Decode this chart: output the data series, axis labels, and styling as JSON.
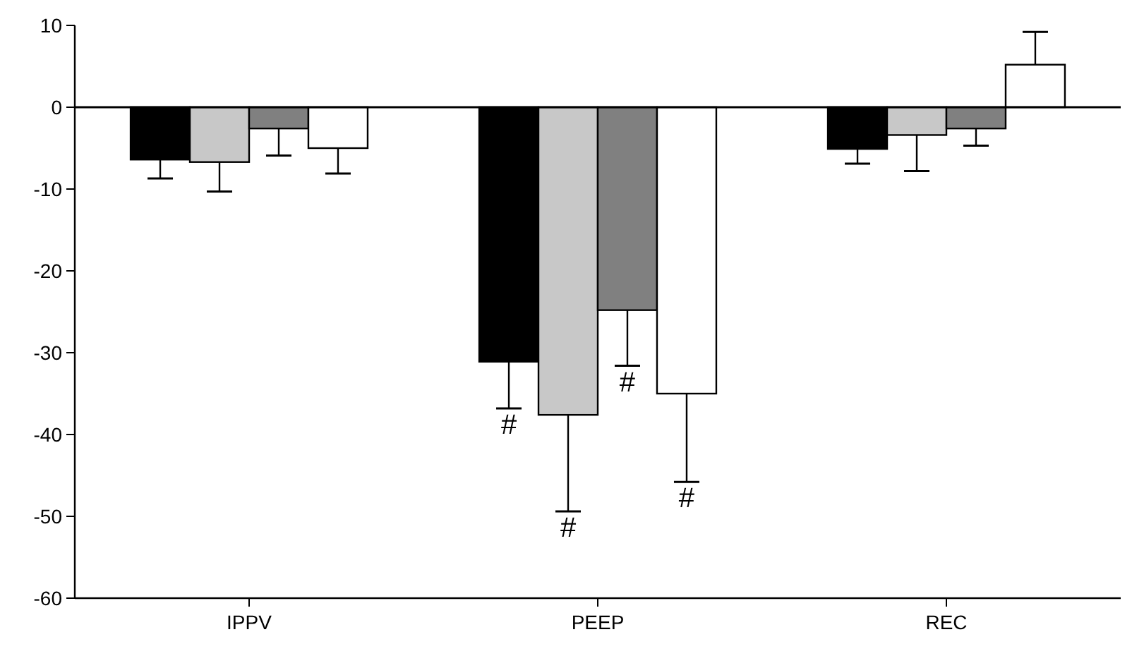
{
  "chart_data": {
    "type": "bar",
    "categories": [
      "IPPV",
      "PEEP",
      "REC"
    ],
    "series": [
      {
        "color": "#000000",
        "values": [
          -6.4,
          -31.1,
          -5.1
        ],
        "errors": [
          [
            -8.7,
            -6.4
          ],
          [
            -36.8,
            -31.1
          ],
          [
            -6.9,
            -5.1
          ]
        ]
      },
      {
        "color": "#c8c8c8",
        "values": [
          -6.7,
          -37.6,
          -3.4
        ],
        "errors": [
          [
            -10.3,
            -6.7
          ],
          [
            -49.4,
            -37.6
          ],
          [
            -7.8,
            -3.4
          ]
        ]
      },
      {
        "color": "#808080",
        "values": [
          -2.6,
          -24.8,
          -2.6
        ],
        "errors": [
          [
            -5.9,
            -2.6
          ],
          [
            -31.6,
            -24.8
          ],
          [
            -4.7,
            -2.6
          ]
        ]
      },
      {
        "color": "#ffffff",
        "values": [
          -5.0,
          -35.0,
          5.2
        ],
        "errors": [
          [
            -8.1,
            -5.0
          ],
          [
            -45.8,
            -35.0
          ],
          [
            5.2,
            9.2
          ]
        ]
      }
    ],
    "ylim": [
      -60,
      10
    ],
    "yticks": [
      -60,
      -50,
      -40,
      -30,
      -20,
      -10,
      0,
      10
    ],
    "ref_lines": [
      {
        "axis": "y",
        "value": 0
      }
    ],
    "annotations": [
      "#",
      "#",
      "#",
      "#"
    ]
  }
}
